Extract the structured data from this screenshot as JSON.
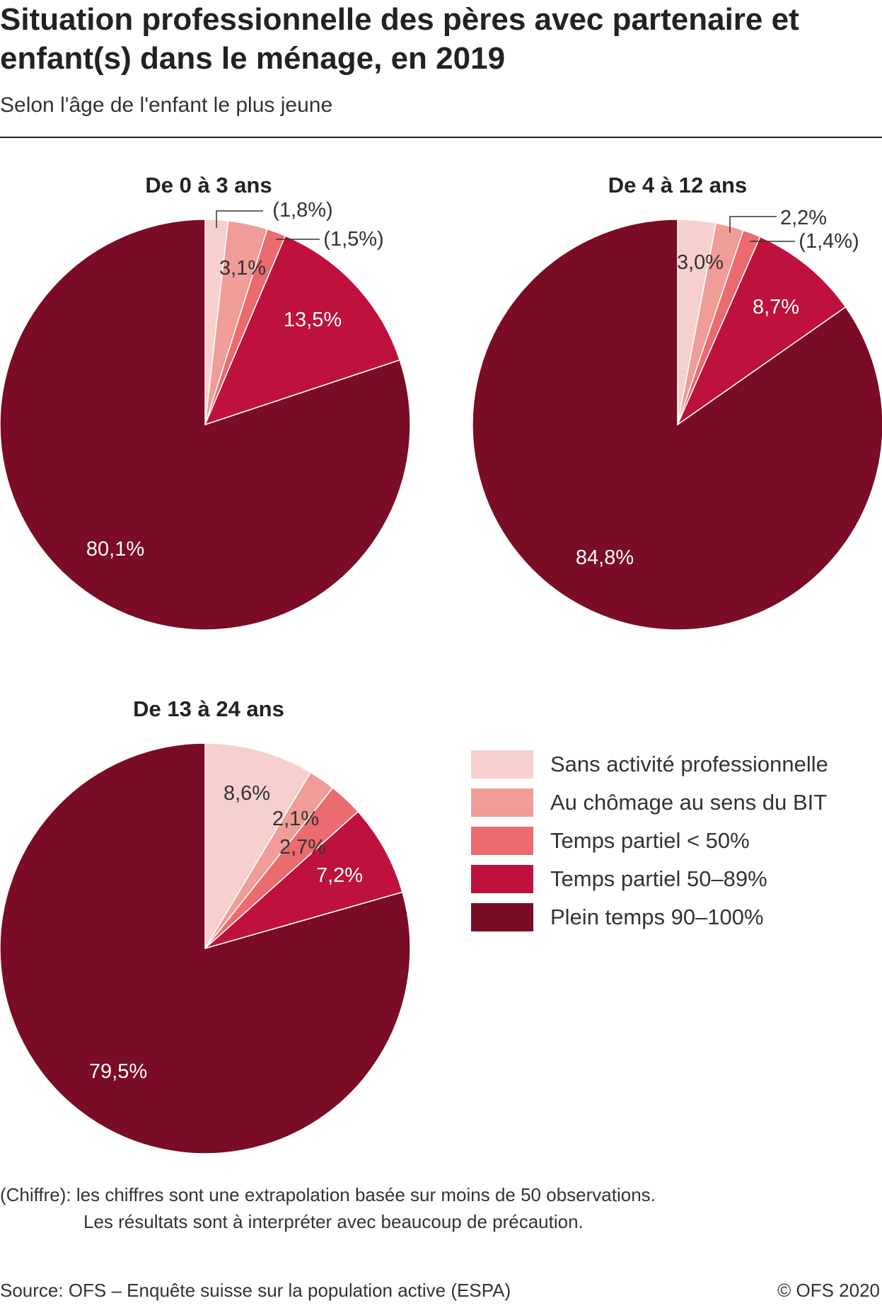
{
  "title": "Situation professionnelle des pères avec partenaire et enfant(s) dans le ménage, en 2019",
  "subtitle": "Selon l'âge de l'enfant le plus jeune",
  "legend": [
    {
      "label": "Sans activité professionnelle",
      "color": "#f7d0ce"
    },
    {
      "label": "Au chômage au sens du BIT",
      "color": "#f09c98"
    },
    {
      "label": "Temps partiel < 50%",
      "color": "#eb6b6e"
    },
    {
      "label": "Temps partiel 50–89%",
      "color": "#be123c"
    },
    {
      "label": "Plein temps 90–100%",
      "color": "#7a0c25"
    }
  ],
  "chart_data": [
    {
      "type": "pie",
      "title": "De 0 à 3 ans",
      "categories": [
        "Sans activité professionnelle",
        "Au chômage au sens du BIT",
        "Temps partiel < 50%",
        "Temps partiel 50–89%",
        "Plein temps 90–100%"
      ],
      "values": [
        1.8,
        3.1,
        1.5,
        13.5,
        80.1
      ],
      "labels": [
        "(1,8%)",
        "3,1%",
        "(1,5%)",
        "13,5%",
        "80,1%"
      ]
    },
    {
      "type": "pie",
      "title": "De 4 à 12 ans",
      "categories": [
        "Sans activité professionnelle",
        "Au chômage au sens du BIT",
        "Temps partiel < 50%",
        "Temps partiel 50–89%",
        "Plein temps 90–100%"
      ],
      "values": [
        3.0,
        2.2,
        1.4,
        8.7,
        84.8
      ],
      "labels": [
        "3,0%",
        "2,2%",
        "(1,4%)",
        "8,7%",
        "84,8%"
      ]
    },
    {
      "type": "pie",
      "title": "De 13 à 24 ans",
      "categories": [
        "Sans activité professionnelle",
        "Au chômage au sens du BIT",
        "Temps partiel < 50%",
        "Temps partiel 50–89%",
        "Plein temps 90–100%"
      ],
      "values": [
        8.6,
        2.1,
        2.7,
        7.2,
        79.5
      ],
      "labels": [
        "8,6%",
        "2,1%",
        "2,7%",
        "7,2%",
        "79,5%"
      ]
    }
  ],
  "note_line1": "(Chiffre): les chiffres sont une extrapolation basée sur moins de 50 observations.",
  "note_line2": "Les résultats sont à interpréter avec beaucoup de précaution.",
  "source": "Source: OFS – Enquête suisse sur la population active (ESPA)",
  "copyright": "© OFS 2020"
}
